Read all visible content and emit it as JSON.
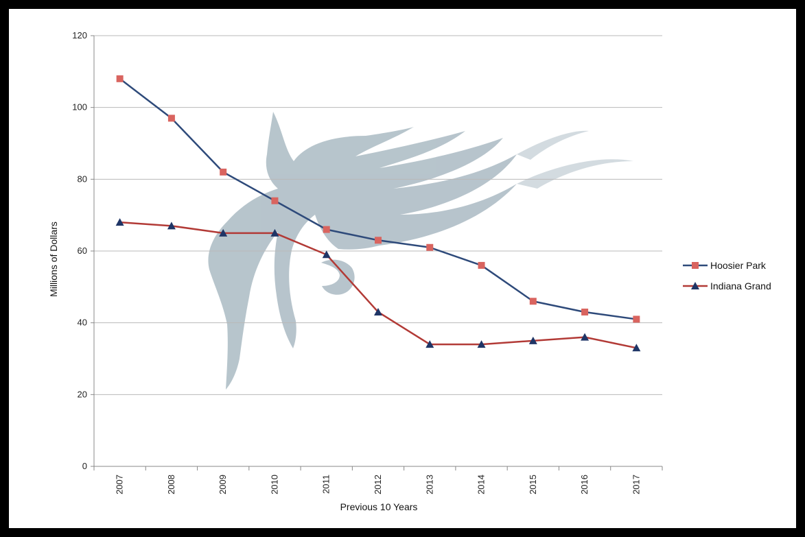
{
  "chart_data": {
    "type": "line",
    "xlabel": "Previous 10 Years",
    "ylabel": "Millions of Dollars",
    "x": [
      "2007",
      "2008",
      "2009",
      "2010",
      "2011",
      "2012",
      "2013",
      "2014",
      "2015",
      "2016",
      "2017"
    ],
    "ylim": [
      0,
      120
    ],
    "yticks": [
      0,
      20,
      40,
      60,
      80,
      100,
      120
    ],
    "grid": true,
    "legend": "right",
    "series": [
      {
        "name": "Hoosier Park",
        "line_color": "#2e4a7a",
        "marker_color": "#d9645f",
        "marker": "square",
        "values": [
          108,
          97,
          82,
          74,
          66,
          63,
          61,
          56,
          46,
          43,
          41
        ]
      },
      {
        "name": "Indiana Grand",
        "line_color": "#b23a36",
        "marker_color": "#1f3566",
        "marker": "triangle",
        "values": [
          68,
          67,
          65,
          65,
          59,
          43,
          34,
          34,
          35,
          36,
          33
        ]
      }
    ]
  }
}
